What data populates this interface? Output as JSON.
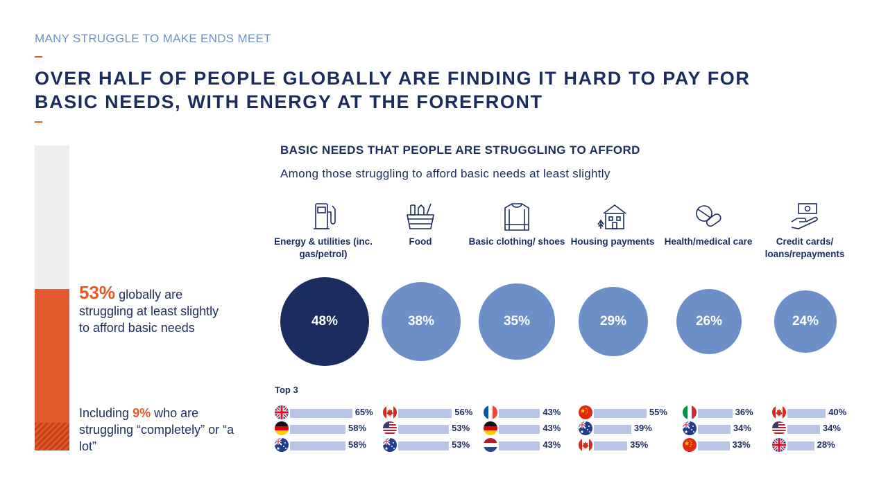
{
  "header": {
    "kicker": "MANY STRUGGLE TO MAKE ENDS MEET",
    "headline": "OVER HALF OF PEOPLE GLOBALLY ARE FINDING IT HARD TO PAY FOR BASIC NEEDS, WITH ENERGY AT THE FOREFRONT"
  },
  "colors": {
    "accent": "#e05a2b",
    "navy": "#1b2d5e",
    "bubble_top": "#1b2d5e",
    "bubble": "#6d8fc8",
    "rank_bar": "#b8c5e6"
  },
  "global_stats": {
    "struggling_pct": 53,
    "struggling_big": "53%",
    "struggling_text": "globally are struggling at least slightly to afford basic needs",
    "completely_pct": 9,
    "completely_prefix": "Including",
    "completely_value": "9%",
    "completely_text": "who are struggling “completely” or “a lot”"
  },
  "chart_data": {
    "type": "bubble",
    "title": "BASIC NEEDS THAT PEOPLE ARE STRUGGLING TO AFFORD",
    "subtitle": "Among those struggling to afford basic needs at least slightly",
    "top3_label": "Top 3",
    "categories": [
      {
        "label": "Energy & utilities (inc. gas/petrol)",
        "icon": "fuel-pump-icon",
        "value": 48,
        "display": "48%",
        "top3": [
          {
            "country": "UK",
            "flag": "uk-flag-icon",
            "value": 65,
            "display": "65%"
          },
          {
            "country": "Germany",
            "flag": "germany-flag-icon",
            "value": 58,
            "display": "58%"
          },
          {
            "country": "Australia",
            "flag": "australia-flag-icon",
            "value": 58,
            "display": "58%"
          }
        ]
      },
      {
        "label": "Food",
        "icon": "grocery-basket-icon",
        "value": 38,
        "display": "38%",
        "top3": [
          {
            "country": "Canada",
            "flag": "canada-flag-icon",
            "value": 56,
            "display": "56%"
          },
          {
            "country": "USA",
            "flag": "usa-flag-icon",
            "value": 53,
            "display": "53%"
          },
          {
            "country": "Australia",
            "flag": "australia-flag-icon",
            "value": 53,
            "display": "53%"
          }
        ]
      },
      {
        "label": "Basic clothing/ shoes",
        "icon": "sweater-icon",
        "value": 35,
        "display": "35%",
        "top3": [
          {
            "country": "France",
            "flag": "france-flag-icon",
            "value": 43,
            "display": "43%"
          },
          {
            "country": "Germany",
            "flag": "germany-flag-icon",
            "value": 43,
            "display": "43%"
          },
          {
            "country": "Netherlands",
            "flag": "netherlands-flag-icon",
            "value": 43,
            "display": "43%"
          }
        ]
      },
      {
        "label": "Housing payments",
        "icon": "house-icon",
        "value": 29,
        "display": "29%",
        "top3": [
          {
            "country": "China",
            "flag": "china-flag-icon",
            "value": 55,
            "display": "55%"
          },
          {
            "country": "Australia",
            "flag": "australia-flag-icon",
            "value": 39,
            "display": "39%"
          },
          {
            "country": "Canada",
            "flag": "canada-flag-icon",
            "value": 35,
            "display": "35%"
          }
        ]
      },
      {
        "label": "Health/medical care",
        "icon": "pills-icon",
        "value": 26,
        "display": "26%",
        "top3": [
          {
            "country": "Italy",
            "flag": "italy-flag-icon",
            "value": 36,
            "display": "36%"
          },
          {
            "country": "Australia",
            "flag": "australia-flag-icon",
            "value": 34,
            "display": "34%"
          },
          {
            "country": "China",
            "flag": "china-flag-icon",
            "value": 33,
            "display": "33%"
          }
        ]
      },
      {
        "label": "Credit cards/ loans/repayments",
        "icon": "money-hand-icon",
        "value": 24,
        "display": "24%",
        "top3": [
          {
            "country": "Canada",
            "flag": "canada-flag-icon",
            "value": 40,
            "display": "40%"
          },
          {
            "country": "USA",
            "flag": "usa-flag-icon",
            "value": 34,
            "display": "34%"
          },
          {
            "country": "UK",
            "flag": "uk-flag-icon",
            "value": 28,
            "display": "28%"
          }
        ]
      }
    ]
  }
}
